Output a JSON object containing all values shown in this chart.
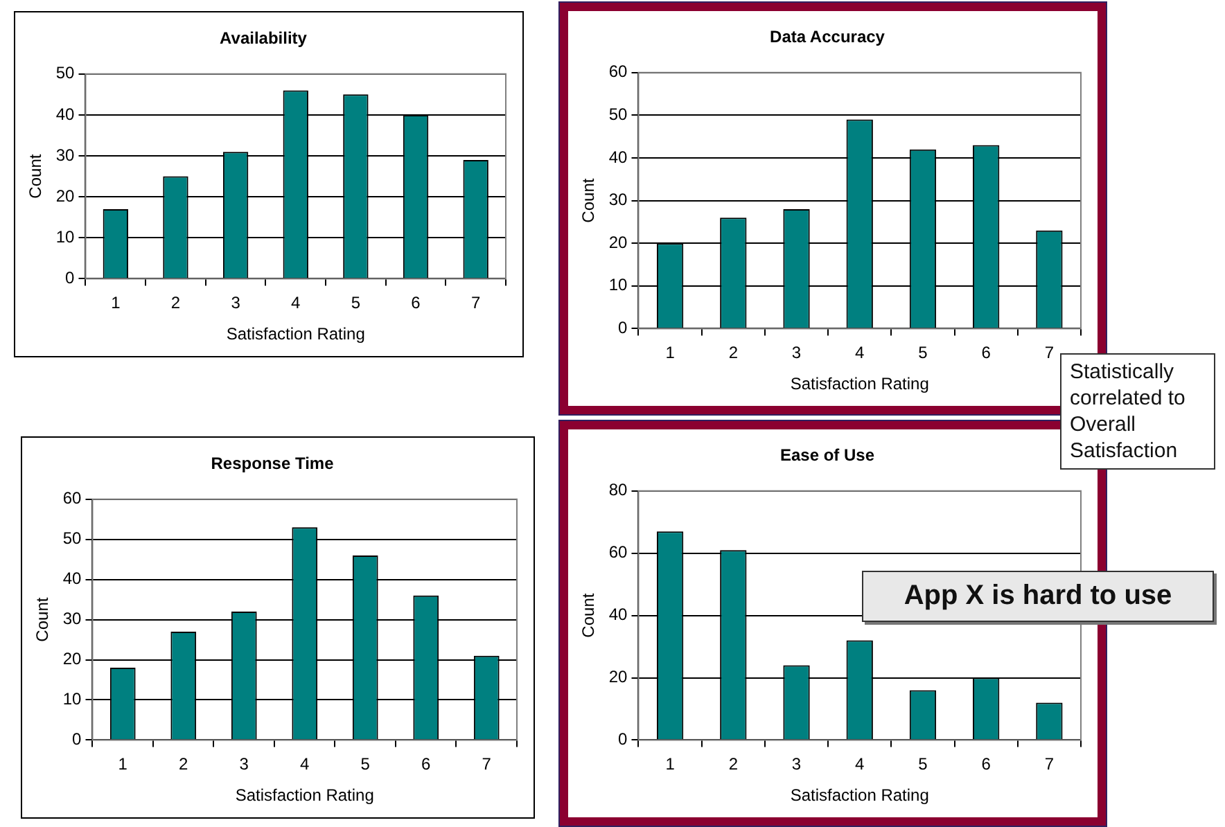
{
  "chart_data": [
    {
      "type": "bar",
      "title": "Availability",
      "xlabel": "Satisfaction Rating",
      "ylabel": "Count",
      "categories": [
        "1",
        "2",
        "3",
        "4",
        "5",
        "6",
        "7"
      ],
      "values": [
        17,
        25,
        31,
        46,
        45,
        40,
        29
      ],
      "color": "#008080",
      "ylim": [
        0,
        50
      ],
      "yticks": [
        0,
        10,
        20,
        30,
        40,
        50
      ],
      "grid": "y",
      "legend": false
    },
    {
      "type": "bar",
      "title": "Data Accuracy",
      "xlabel": "Satisfaction Rating",
      "ylabel": "Count",
      "categories": [
        "1",
        "2",
        "3",
        "4",
        "5",
        "6",
        "7"
      ],
      "values": [
        20,
        26,
        28,
        49,
        42,
        43,
        23
      ],
      "color": "#008080",
      "ylim": [
        0,
        60
      ],
      "yticks": [
        0,
        10,
        20,
        30,
        40,
        50,
        60
      ],
      "grid": "y",
      "legend": false,
      "annotations": [
        "Statistically correlated to Overall Satisfaction"
      ]
    },
    {
      "type": "bar",
      "title": "Response Time",
      "xlabel": "Satisfaction Rating",
      "ylabel": "Count",
      "categories": [
        "1",
        "2",
        "3",
        "4",
        "5",
        "6",
        "7"
      ],
      "values": [
        18,
        27,
        32,
        53,
        46,
        36,
        21
      ],
      "color": "#008080",
      "ylim": [
        0,
        60
      ],
      "yticks": [
        0,
        10,
        20,
        30,
        40,
        50,
        60
      ],
      "grid": "y",
      "legend": false
    },
    {
      "type": "bar",
      "title": "Ease of Use",
      "xlabel": "Satisfaction Rating",
      "ylabel": "Count",
      "categories": [
        "1",
        "2",
        "3",
        "4",
        "5",
        "6",
        "7"
      ],
      "values": [
        67,
        61,
        24,
        32,
        16,
        20,
        12
      ],
      "color": "#008080",
      "ylim": [
        0,
        80
      ],
      "yticks": [
        0,
        20,
        40,
        60,
        80
      ],
      "grid": "y",
      "legend": false,
      "annotations": [
        "App X is hard to use"
      ]
    }
  ]
}
